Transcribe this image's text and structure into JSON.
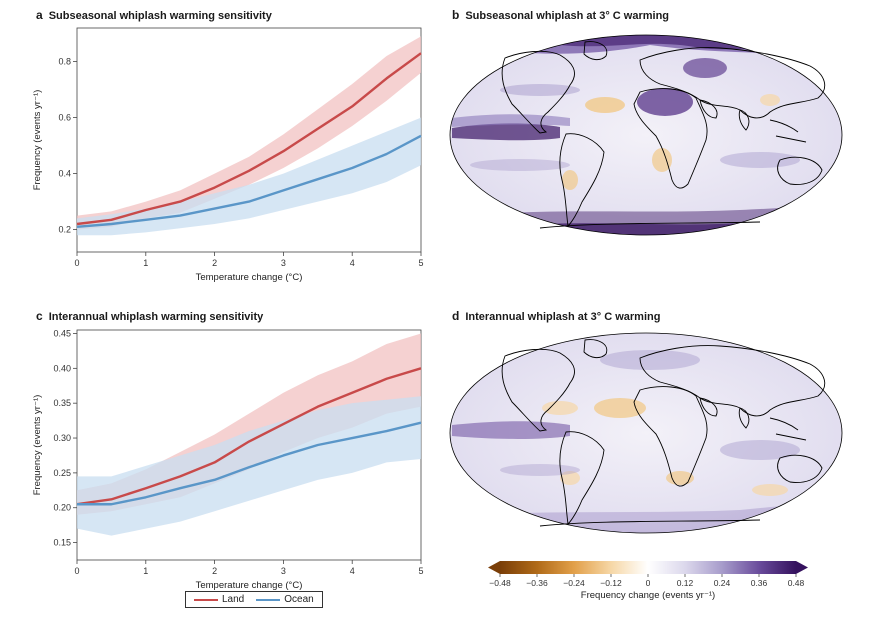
{
  "chart_data": [
    {
      "id": "a",
      "type": "line",
      "panel_letter": "a",
      "title": "Subseasonal whiplash warming sensitivity",
      "xlabel": "Temperature change (°C)",
      "ylabel": "Frequency (events yr⁻¹)",
      "xlim": [
        0,
        5
      ],
      "ylim": [
        0.12,
        0.92
      ],
      "xticks": [
        0,
        1,
        2,
        3,
        4,
        5
      ],
      "yticks": [
        0.2,
        0.4,
        0.6,
        0.8
      ],
      "yticklabels": [
        "0.2",
        "0.4",
        "0.6",
        "0.8"
      ],
      "x": [
        0,
        0.5,
        1,
        1.5,
        2,
        2.5,
        3,
        3.5,
        4,
        4.5,
        5
      ],
      "series": [
        {
          "name": "Land",
          "color": "#c84a4a",
          "band_color": "#f1c2c2",
          "values": [
            0.22,
            0.235,
            0.27,
            0.3,
            0.35,
            0.41,
            0.48,
            0.56,
            0.64,
            0.74,
            0.83
          ],
          "lower": [
            0.2,
            0.21,
            0.24,
            0.26,
            0.31,
            0.36,
            0.42,
            0.49,
            0.57,
            0.66,
            0.76
          ],
          "upper": [
            0.25,
            0.265,
            0.3,
            0.34,
            0.4,
            0.46,
            0.54,
            0.63,
            0.72,
            0.82,
            0.89
          ]
        },
        {
          "name": "Ocean",
          "color": "#5a96c8",
          "band_color": "#c8ddf0",
          "values": [
            0.21,
            0.22,
            0.235,
            0.25,
            0.275,
            0.3,
            0.34,
            0.38,
            0.42,
            0.47,
            0.535
          ],
          "lower": [
            0.18,
            0.18,
            0.19,
            0.205,
            0.22,
            0.24,
            0.27,
            0.3,
            0.33,
            0.37,
            0.43
          ],
          "upper": [
            0.24,
            0.255,
            0.275,
            0.3,
            0.33,
            0.36,
            0.4,
            0.45,
            0.5,
            0.55,
            0.6
          ]
        }
      ]
    },
    {
      "id": "c",
      "type": "line",
      "panel_letter": "c",
      "title": "Interannual whiplash warming sensitivity",
      "xlabel": "Temperature change (°C)",
      "ylabel": "Frequency (events yr⁻¹)",
      "xlim": [
        0,
        5
      ],
      "ylim": [
        0.125,
        0.455
      ],
      "xticks": [
        0,
        1,
        2,
        3,
        4,
        5
      ],
      "yticks": [
        0.15,
        0.2,
        0.25,
        0.3,
        0.35,
        0.4,
        0.45
      ],
      "yticklabels": [
        "0.15",
        "0.20",
        "0.25",
        "0.30",
        "0.35",
        "0.40",
        "0.45"
      ],
      "x": [
        0,
        0.5,
        1,
        1.5,
        2,
        2.5,
        3,
        3.5,
        4,
        4.5,
        5
      ],
      "series": [
        {
          "name": "Land",
          "color": "#c84a4a",
          "band_color": "#f1c2c2",
          "values": [
            0.205,
            0.212,
            0.228,
            0.245,
            0.265,
            0.295,
            0.32,
            0.345,
            0.365,
            0.385,
            0.4
          ],
          "lower": [
            0.19,
            0.195,
            0.205,
            0.215,
            0.235,
            0.255,
            0.28,
            0.3,
            0.315,
            0.335,
            0.345
          ],
          "upper": [
            0.225,
            0.235,
            0.255,
            0.28,
            0.305,
            0.335,
            0.365,
            0.39,
            0.41,
            0.435,
            0.45
          ]
        },
        {
          "name": "Ocean",
          "color": "#5a96c8",
          "band_color": "#c8ddf0",
          "values": [
            0.205,
            0.205,
            0.215,
            0.228,
            0.24,
            0.258,
            0.275,
            0.29,
            0.3,
            0.31,
            0.322
          ],
          "lower": [
            0.17,
            0.16,
            0.17,
            0.18,
            0.195,
            0.21,
            0.225,
            0.24,
            0.25,
            0.265,
            0.27
          ],
          "upper": [
            0.245,
            0.245,
            0.26,
            0.275,
            0.29,
            0.31,
            0.325,
            0.34,
            0.35,
            0.355,
            0.36
          ]
        }
      ]
    },
    {
      "id": "b",
      "type": "heatmap",
      "panel_letter": "b",
      "title": "Subseasonal whiplash at 3° C warming"
    },
    {
      "id": "d",
      "type": "heatmap",
      "panel_letter": "d",
      "title": "Interannual whiplash at 3° C warming"
    }
  ],
  "legend": {
    "items": [
      {
        "name": "Land",
        "color": "#c84a4a"
      },
      {
        "name": "Ocean",
        "color": "#5a96c8"
      }
    ]
  },
  "colorbar": {
    "label": "Frequency change (events yr⁻¹)",
    "range": [
      -0.48,
      0.48
    ],
    "ticks": [
      -0.48,
      -0.36,
      -0.24,
      -0.12,
      0,
      0.12,
      0.24,
      0.36,
      0.48
    ],
    "ticklabels": [
      "−0.48",
      "−0.36",
      "−0.24",
      "−0.12",
      "0",
      "0.12",
      "0.24",
      "0.36",
      "0.48"
    ],
    "colors": [
      "#7a3e08",
      "#b06a18",
      "#e2a04a",
      "#f6d7a6",
      "#ffffff",
      "#dcd8ec",
      "#a79ccb",
      "#6a4c9c",
      "#35125e"
    ]
  }
}
